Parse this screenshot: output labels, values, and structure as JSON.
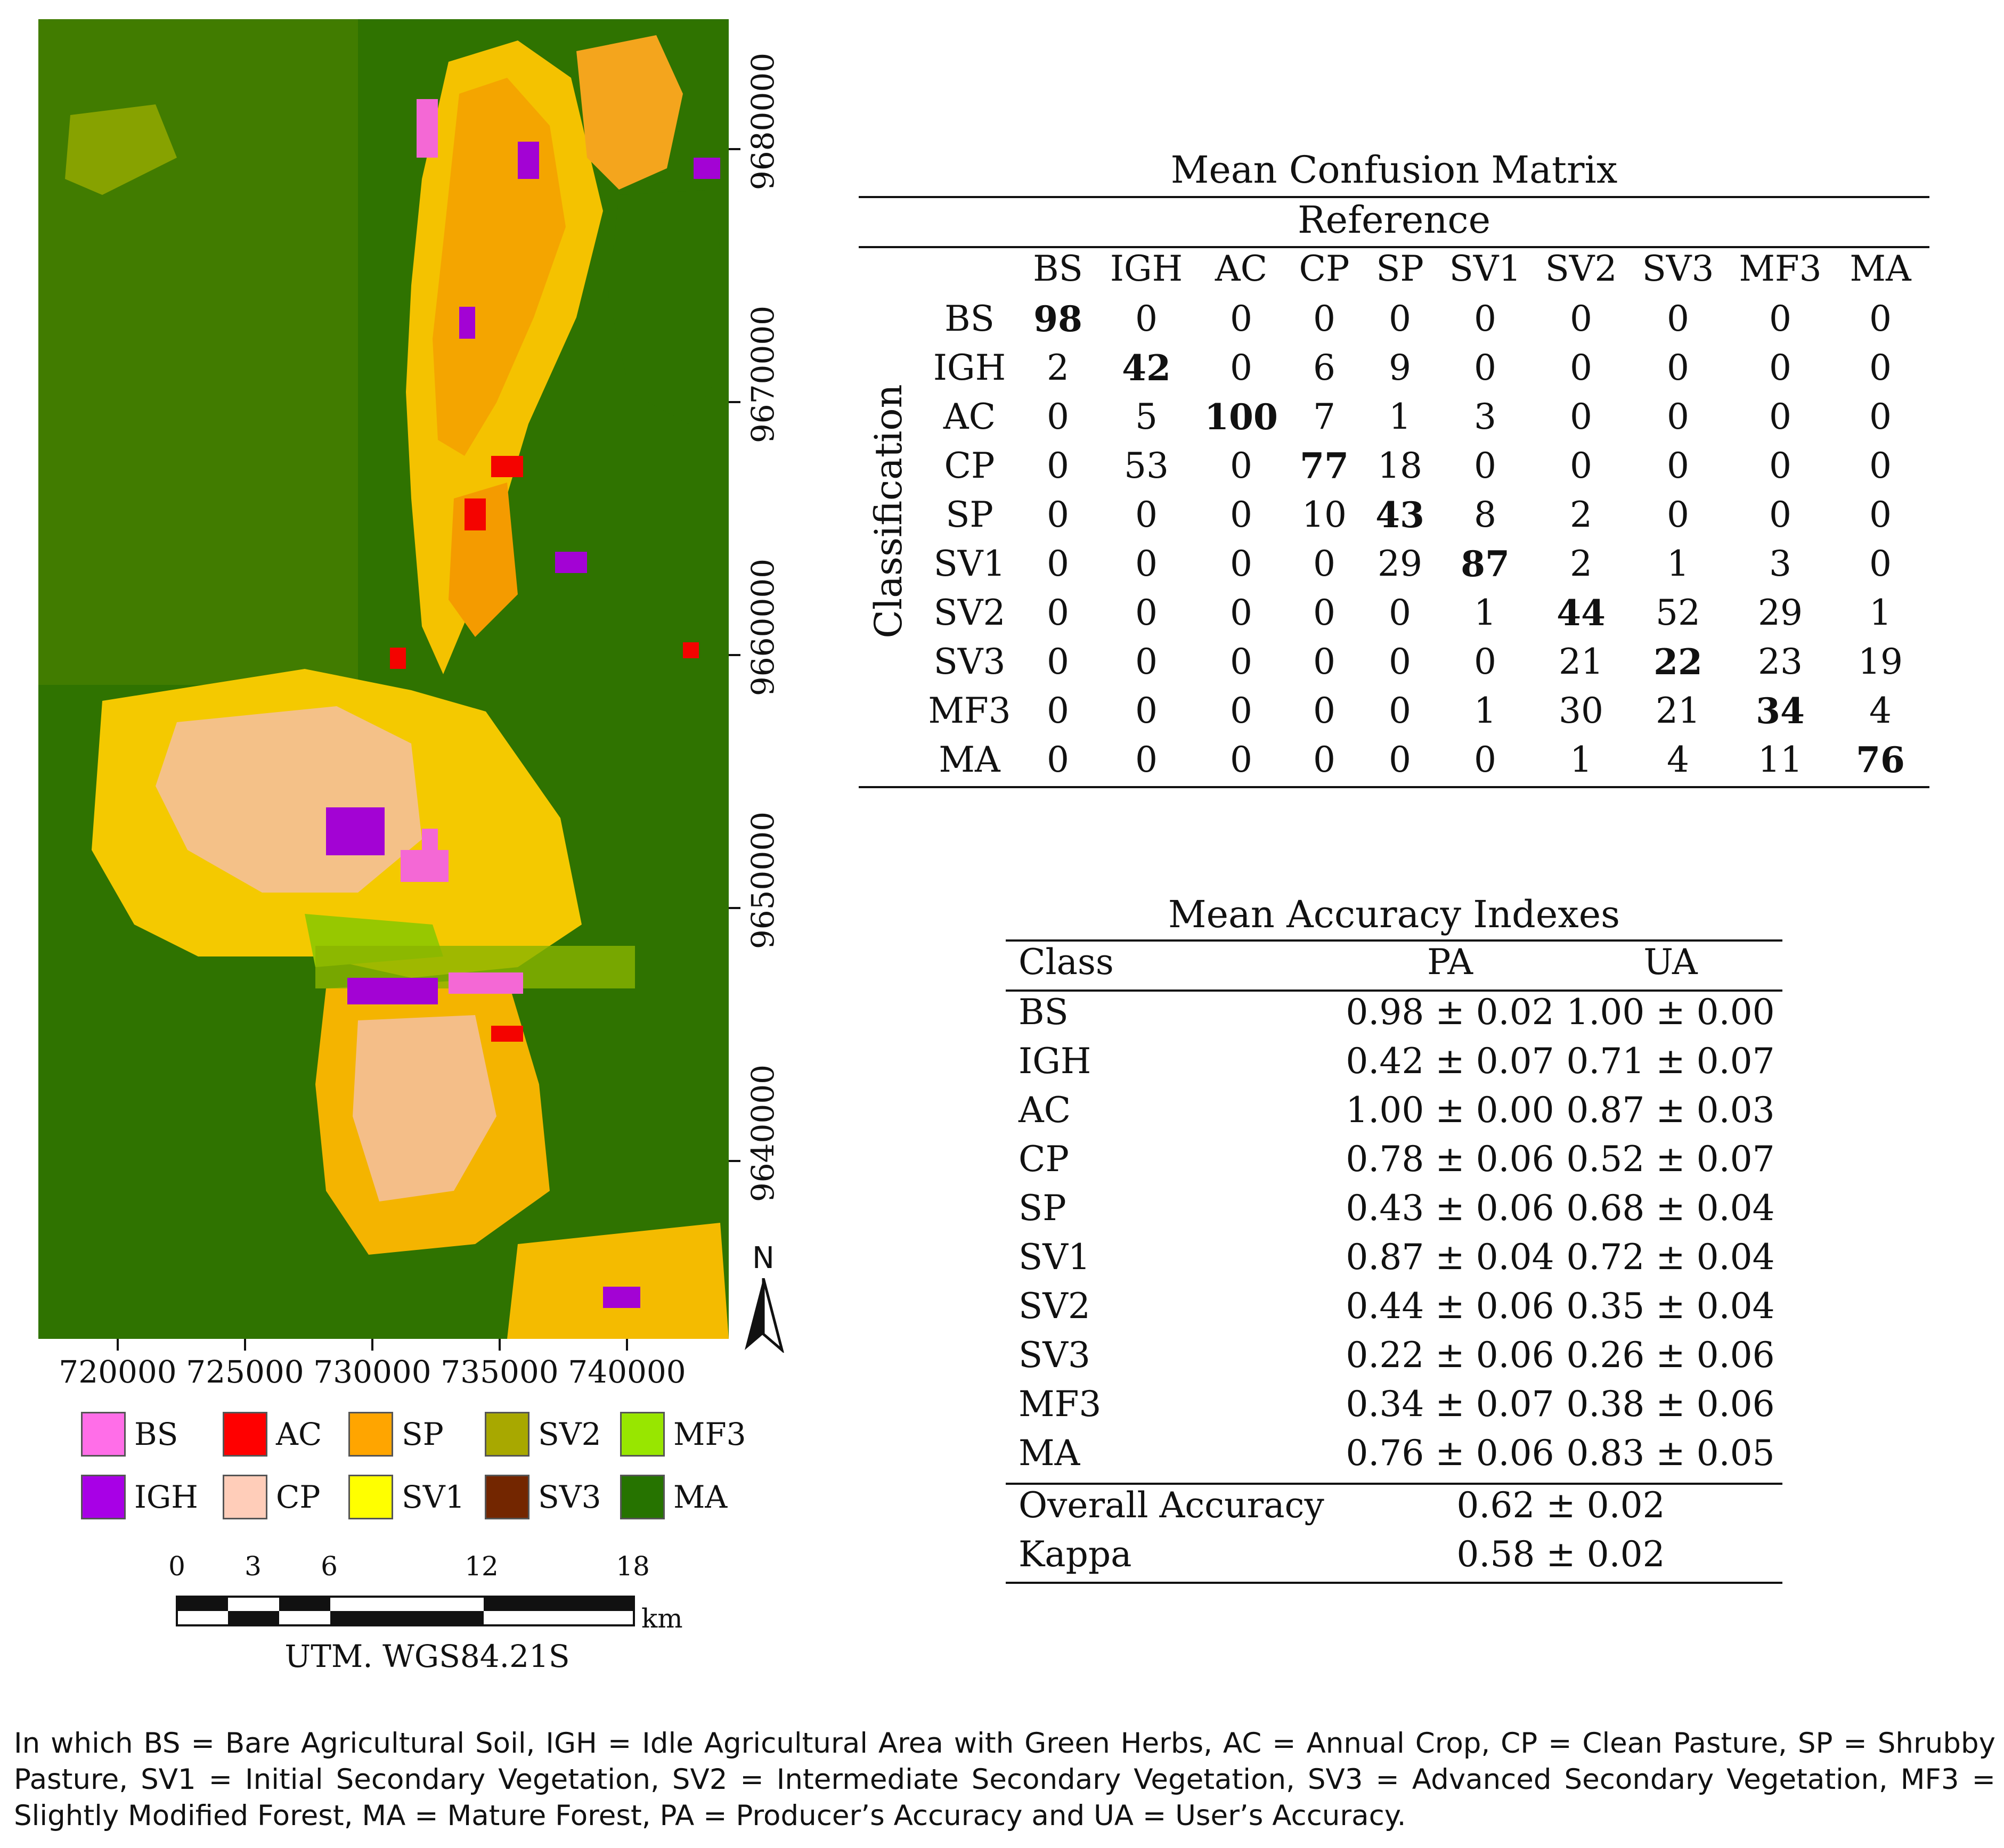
{
  "map": {
    "y_coords": [
      "9680000",
      "9670000",
      "9660000",
      "9650000",
      "9640000"
    ],
    "x_coords": [
      "720000",
      "725000",
      "730000",
      "735000",
      "740000"
    ],
    "north_label": "N",
    "crs_label": "UTM. WGS84.21S",
    "scale_numbers": [
      "0",
      "3",
      "6",
      "12",
      "18"
    ],
    "scale_unit": "km",
    "class_colors": {
      "BS": "#ff6ee8",
      "IGH": "#a800e6",
      "AC": "#ff0000",
      "CP": "#ffcdb9",
      "SP": "#ffa500",
      "SV1": "#ffff00",
      "SV2": "#a8a800",
      "SV3": "#732600",
      "MF3": "#98e600",
      "MA": "#267300"
    }
  },
  "legend": [
    {
      "label": "BS",
      "color": "#ff6ee8"
    },
    {
      "label": "AC",
      "color": "#ff0000"
    },
    {
      "label": "SP",
      "color": "#ffa500"
    },
    {
      "label": "SV2",
      "color": "#a8a800"
    },
    {
      "label": "MF3",
      "color": "#98e600"
    },
    {
      "label": "IGH",
      "color": "#a800e6"
    },
    {
      "label": "CP",
      "color": "#ffcdb9"
    },
    {
      "label": "SV1",
      "color": "#ffff00"
    },
    {
      "label": "SV3",
      "color": "#732600"
    },
    {
      "label": "MA",
      "color": "#267300"
    }
  ],
  "confusion": {
    "title": "Mean Confusion Matrix",
    "reference_label": "Reference",
    "classification_label": "Classification",
    "columns": [
      "BS",
      "IGH",
      "AC",
      "CP",
      "SP",
      "SV1",
      "SV2",
      "SV3",
      "MF3",
      "MA"
    ],
    "rows": [
      {
        "label": "BS",
        "values": [
          "98",
          "0",
          "0",
          "0",
          "0",
          "0",
          "0",
          "0",
          "0",
          "0"
        ]
      },
      {
        "label": "IGH",
        "values": [
          "2",
          "42",
          "0",
          "6",
          "9",
          "0",
          "0",
          "0",
          "0",
          "0"
        ]
      },
      {
        "label": "AC",
        "values": [
          "0",
          "5",
          "100",
          "7",
          "1",
          "3",
          "0",
          "0",
          "0",
          "0"
        ]
      },
      {
        "label": "CP",
        "values": [
          "0",
          "53",
          "0",
          "77",
          "18",
          "0",
          "0",
          "0",
          "0",
          "0"
        ]
      },
      {
        "label": "SP",
        "values": [
          "0",
          "0",
          "0",
          "10",
          "43",
          "8",
          "2",
          "0",
          "0",
          "0"
        ]
      },
      {
        "label": "SV1",
        "values": [
          "0",
          "0",
          "0",
          "0",
          "29",
          "87",
          "2",
          "1",
          "3",
          "0"
        ]
      },
      {
        "label": "SV2",
        "values": [
          "0",
          "0",
          "0",
          "0",
          "0",
          "1",
          "44",
          "52",
          "29",
          "1"
        ]
      },
      {
        "label": "SV3",
        "values": [
          "0",
          "0",
          "0",
          "0",
          "0",
          "0",
          "21",
          "22",
          "23",
          "19"
        ]
      },
      {
        "label": "MF3",
        "values": [
          "0",
          "0",
          "0",
          "0",
          "0",
          "1",
          "30",
          "21",
          "34",
          "4"
        ]
      },
      {
        "label": "MA",
        "values": [
          "0",
          "0",
          "0",
          "0",
          "0",
          "0",
          "1",
          "4",
          "11",
          "76"
        ]
      }
    ]
  },
  "accuracy": {
    "title": "Mean Accuracy Indexes",
    "headers": {
      "class": "Class",
      "pa": "PA",
      "ua": "UA"
    },
    "rows": [
      {
        "cls": "BS",
        "pa": "0.98 ± 0.02",
        "ua": "1.00 ± 0.00"
      },
      {
        "cls": "IGH",
        "pa": "0.42 ± 0.07",
        "ua": "0.71 ± 0.07"
      },
      {
        "cls": "AC",
        "pa": "1.00 ± 0.00",
        "ua": "0.87 ± 0.03"
      },
      {
        "cls": "CP",
        "pa": "0.78 ± 0.06",
        "ua": "0.52 ± 0.07"
      },
      {
        "cls": "SP",
        "pa": "0.43 ± 0.06",
        "ua": "0.68 ± 0.04"
      },
      {
        "cls": "SV1",
        "pa": "0.87 ± 0.04",
        "ua": "0.72 ± 0.04"
      },
      {
        "cls": "SV2",
        "pa": "0.44 ± 0.06",
        "ua": "0.35 ± 0.04"
      },
      {
        "cls": "SV3",
        "pa": "0.22 ± 0.06",
        "ua": "0.26 ± 0.06"
      },
      {
        "cls": "MF3",
        "pa": "0.34 ± 0.07",
        "ua": "0.38 ± 0.06"
      },
      {
        "cls": "MA",
        "pa": "0.76 ± 0.06",
        "ua": "0.83 ± 0.05"
      }
    ],
    "overall_label": "Overall Accuracy",
    "overall_value": "0.62 ± 0.02",
    "kappa_label": "Kappa",
    "kappa_value": "0.58 ± 0.02"
  },
  "caption": "In which BS = Bare Agricultural Soil, IGH = Idle Agricultural Area with Green Herbs, AC = Annual Crop, CP = Clean Pasture, SP = Shrubby Pasture, SV1 = Initial Secondary Vegetation, SV2 = Intermediate Secondary Vegetation, SV3 = Advanced Secondary Vegetation, MF3 = Slightly Modified Forest, MA = Mature Forest, PA = Producer’s Accuracy and UA = User’s Accuracy."
}
